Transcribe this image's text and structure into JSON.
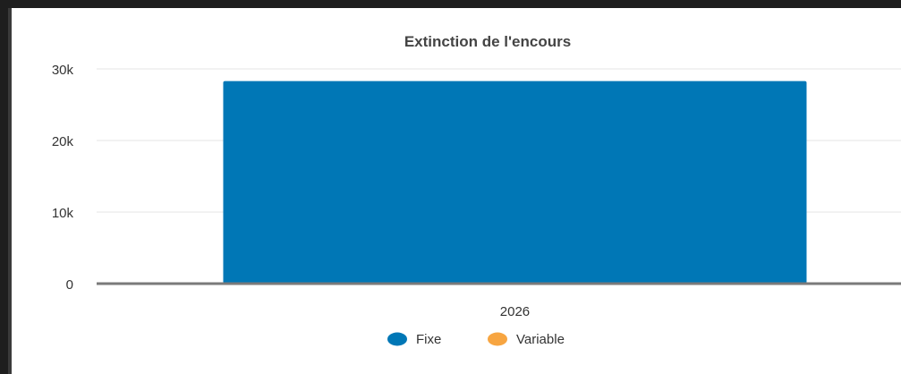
{
  "chart_data": {
    "type": "bar",
    "title": "Extinction de l'encours",
    "categories": [
      "2026"
    ],
    "series": [
      {
        "name": "Fixe",
        "values": [
          28300
        ],
        "color": "#0077b6"
      },
      {
        "name": "Variable",
        "values": [
          0
        ],
        "color": "#f7a541"
      }
    ],
    "ylim": [
      0,
      30000
    ],
    "yticks": [
      0,
      10000,
      20000,
      30000
    ],
    "ytick_labels": [
      "0",
      "10k",
      "20k",
      "30k"
    ],
    "grid": true,
    "legend_position": "bottom-center"
  }
}
